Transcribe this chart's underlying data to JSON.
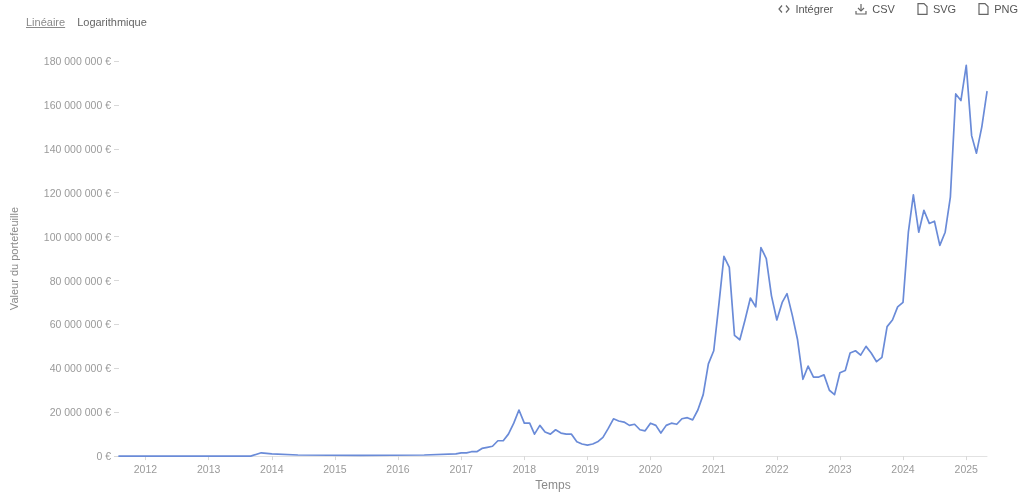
{
  "chart_data": {
    "type": "line",
    "xlabel": "Temps",
    "ylabel": "Valeur du portefeuille",
    "annotations": [
      "Linéaire",
      "Logarithmique",
      "Intégrer",
      "CSV",
      "SVG",
      "PNG"
    ],
    "x": [
      "2011-08",
      "2013-09",
      "2013-11",
      "2014-01",
      "2014-06",
      "2015-06",
      "2016-06",
      "2016-12",
      "2017-01",
      "2017-02",
      "2017-03",
      "2017-04",
      "2017-05",
      "2017-06",
      "2017-07",
      "2017-08",
      "2017-09",
      "2017-10",
      "2017-11",
      "2017-12",
      "2018-01",
      "2018-02",
      "2018-03",
      "2018-04",
      "2018-05",
      "2018-06",
      "2018-07",
      "2018-08",
      "2018-09",
      "2018-10",
      "2018-11",
      "2018-12",
      "2019-01",
      "2019-02",
      "2019-03",
      "2019-04",
      "2019-05",
      "2019-06",
      "2019-07",
      "2019-08",
      "2019-09",
      "2019-10",
      "2019-11",
      "2019-12",
      "2020-01",
      "2020-02",
      "2020-03",
      "2020-04",
      "2020-05",
      "2020-06",
      "2020-07",
      "2020-08",
      "2020-09",
      "2020-10",
      "2020-11",
      "2020-12",
      "2021-01",
      "2021-02",
      "2021-03",
      "2021-04",
      "2021-05",
      "2021-06",
      "2021-07",
      "2021-08",
      "2021-09",
      "2021-10",
      "2021-11",
      "2021-12",
      "2022-01",
      "2022-02",
      "2022-03",
      "2022-04",
      "2022-05",
      "2022-06",
      "2022-07",
      "2022-08",
      "2022-09",
      "2022-10",
      "2022-11",
      "2022-12",
      "2023-01",
      "2023-02",
      "2023-03",
      "2023-04",
      "2023-05",
      "2023-06",
      "2023-07",
      "2023-08",
      "2023-09",
      "2023-10",
      "2023-11",
      "2023-12",
      "2024-01",
      "2024-02",
      "2024-03",
      "2024-04",
      "2024-05",
      "2024-06",
      "2024-07",
      "2024-08",
      "2024-09",
      "2024-10",
      "2024-11",
      "2024-12",
      "2025-01",
      "2025-02",
      "2025-03",
      "2025-04",
      "2025-05"
    ],
    "values": [
      0,
      0,
      1500000,
      1000000,
      500000,
      300000,
      500000,
      1000000,
      1500000,
      1500000,
      2000000,
      2000000,
      3500000,
      4000000,
      4500000,
      7000000,
      7000000,
      10000000,
      15000000,
      21000000,
      15000000,
      15000000,
      10000000,
      14000000,
      11000000,
      10000000,
      12000000,
      10500000,
      10000000,
      10000000,
      6500000,
      5500000,
      5000000,
      5500000,
      6500000,
      8500000,
      12500000,
      17000000,
      16000000,
      15500000,
      14000000,
      14500000,
      12000000,
      11500000,
      15000000,
      14000000,
      10500000,
      14000000,
      15000000,
      14500000,
      17000000,
      17500000,
      16500000,
      21000000,
      28000000,
      42000000,
      48000000,
      70000000,
      91000000,
      86000000,
      55000000,
      53000000,
      62000000,
      72000000,
      68000000,
      95000000,
      90000000,
      73000000,
      62000000,
      70000000,
      74000000,
      64000000,
      53000000,
      35000000,
      41000000,
      36000000,
      36000000,
      37000000,
      30000000,
      28000000,
      38000000,
      39000000,
      47000000,
      48000000,
      46000000,
      50000000,
      47000000,
      43000000,
      45000000,
      59000000,
      62000000,
      68000000,
      70000000,
      102000000,
      119000000,
      102000000,
      112000000,
      106000000,
      107000000,
      96000000,
      102000000,
      118000000,
      165000000,
      162000000,
      178000000,
      146000000,
      138000000,
      150000000,
      166000000
    ],
    "color": "#6a8bd8",
    "xlim": [
      "2011-08",
      "2025-05"
    ],
    "xticks": [
      "2012",
      "2013",
      "2014",
      "2015",
      "2016",
      "2017",
      "2018",
      "2019",
      "2020",
      "2021",
      "2022",
      "2023",
      "2024",
      "2025"
    ],
    "ylim": [
      0,
      180000000
    ],
    "yticks": [
      {
        "value": 0,
        "label": "0 €"
      },
      {
        "value": 20000000,
        "label": "20 000 000 €"
      },
      {
        "value": 40000000,
        "label": "40 000 000 €"
      },
      {
        "value": 60000000,
        "label": "60 000 000 €"
      },
      {
        "value": 80000000,
        "label": "80 000 000 €"
      },
      {
        "value": 100000000,
        "label": "100 000 000 €"
      },
      {
        "value": 120000000,
        "label": "120 000 000 €"
      },
      {
        "value": 140000000,
        "label": "140 000 000 €"
      },
      {
        "value": 160000000,
        "label": "160 000 000 €"
      },
      {
        "value": 180000000,
        "label": "180 000 000 €"
      }
    ],
    "grid": false
  }
}
